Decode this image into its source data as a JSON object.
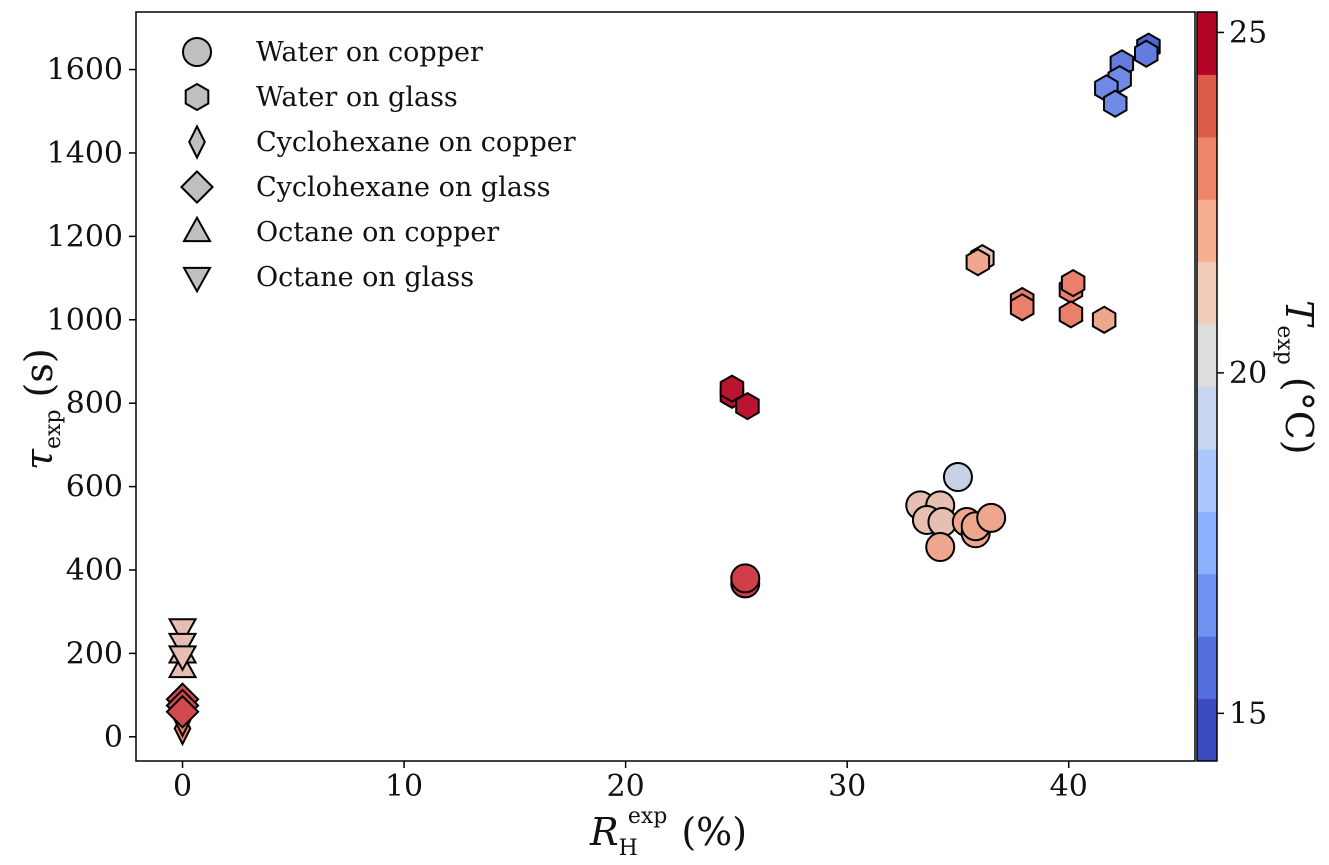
{
  "chart_data": {
    "type": "scatter",
    "title": "",
    "xlabel": {
      "main": "R",
      "sub": "H",
      "sup": "exp",
      "unit": "(%)"
    },
    "ylabel": {
      "main": "τ",
      "sub": "exp",
      "unit": "(s)"
    },
    "xlim": [
      -2.1,
      45.7
    ],
    "ylim": [
      -58,
      1738
    ],
    "xticks": [
      0,
      10,
      20,
      30,
      40
    ],
    "yticks": [
      0,
      200,
      400,
      600,
      800,
      1000,
      1200,
      1400,
      1600
    ],
    "grid": false,
    "legend_position": "top-left",
    "legend": [
      {
        "label": "Water on copper",
        "marker": "circle"
      },
      {
        "label": "Water on glass",
        "marker": "hexagon"
      },
      {
        "label": "Cyclohexane on copper",
        "marker": "thin-diamond"
      },
      {
        "label": "Cyclohexane on glass",
        "marker": "diamond"
      },
      {
        "label": "Octane on copper",
        "marker": "triangle-up"
      },
      {
        "label": "Octane on glass",
        "marker": "triangle-down"
      }
    ],
    "colorbar": {
      "label": "T",
      "label_sub": "exp",
      "unit": "(°C)",
      "range": [
        14.3,
        25.3
      ],
      "ticks": [
        15,
        20,
        25
      ],
      "colors": [
        "#3b4cc0",
        "#5470de",
        "#6f92f3",
        "#8db0fe",
        "#aac7fd",
        "#c6d6f1",
        "#dddddd",
        "#f1ccb8",
        "#f7ad8f",
        "#ee8468",
        "#dc5d4a",
        "#b40426"
      ]
    },
    "series": [
      {
        "name": "Water on copper",
        "marker": "circle",
        "points": [
          {
            "x": 25.4,
            "y": 368,
            "t": 24.2
          },
          {
            "x": 25.4,
            "y": 380,
            "t": 24.2
          },
          {
            "x": 35.0,
            "y": 623,
            "t": 19.0
          },
          {
            "x": 33.3,
            "y": 555,
            "t": 21.0
          },
          {
            "x": 34.2,
            "y": 555,
            "t": 21.0
          },
          {
            "x": 33.6,
            "y": 520,
            "t": 21.0
          },
          {
            "x": 34.3,
            "y": 515,
            "t": 21.0
          },
          {
            "x": 34.2,
            "y": 455,
            "t": 22.0
          },
          {
            "x": 35.4,
            "y": 515,
            "t": 22.0
          },
          {
            "x": 35.8,
            "y": 488,
            "t": 22.0
          },
          {
            "x": 35.8,
            "y": 505,
            "t": 22.0
          },
          {
            "x": 36.5,
            "y": 525,
            "t": 22.0
          }
        ]
      },
      {
        "name": "Water on glass",
        "marker": "hexagon",
        "points": [
          {
            "x": 24.8,
            "y": 820,
            "t": 25.0
          },
          {
            "x": 24.8,
            "y": 835,
            "t": 25.0
          },
          {
            "x": 25.5,
            "y": 793,
            "t": 25.0
          },
          {
            "x": 36.1,
            "y": 1148,
            "t": 21.0
          },
          {
            "x": 35.9,
            "y": 1138,
            "t": 22.0
          },
          {
            "x": 37.9,
            "y": 1045,
            "t": 23.0
          },
          {
            "x": 37.9,
            "y": 1030,
            "t": 23.0
          },
          {
            "x": 40.1,
            "y": 1072,
            "t": 23.0
          },
          {
            "x": 40.1,
            "y": 1013,
            "t": 23.0
          },
          {
            "x": 40.2,
            "y": 1088,
            "t": 23.0
          },
          {
            "x": 41.6,
            "y": 1000,
            "t": 22.0
          },
          {
            "x": 43.6,
            "y": 1655,
            "t": 15.0
          },
          {
            "x": 43.5,
            "y": 1638,
            "t": 15.6
          },
          {
            "x": 42.4,
            "y": 1615,
            "t": 15.6
          },
          {
            "x": 42.3,
            "y": 1577,
            "t": 16.0
          },
          {
            "x": 41.7,
            "y": 1555,
            "t": 16.0
          },
          {
            "x": 42.1,
            "y": 1518,
            "t": 16.0
          }
        ]
      },
      {
        "name": "Cyclohexane on copper",
        "marker": "thin-diamond",
        "points": [
          {
            "x": 0,
            "y": 20,
            "t": 23.0
          },
          {
            "x": 0,
            "y": 40,
            "t": 23.0
          }
        ]
      },
      {
        "name": "Cyclohexane on glass",
        "marker": "diamond",
        "points": [
          {
            "x": 0,
            "y": 90,
            "t": 24.0
          },
          {
            "x": 0,
            "y": 75,
            "t": 24.0
          },
          {
            "x": 0,
            "y": 60,
            "t": 24.0
          }
        ]
      },
      {
        "name": "Octane on copper",
        "marker": "triangle-up",
        "points": [
          {
            "x": 0,
            "y": 165,
            "t": 21.0
          },
          {
            "x": 0,
            "y": 200,
            "t": 21.0
          }
        ]
      },
      {
        "name": "Octane on glass",
        "marker": "triangle-down",
        "points": [
          {
            "x": 0,
            "y": 260,
            "t": 21.0
          },
          {
            "x": 0,
            "y": 225,
            "t": 21.0
          },
          {
            "x": 0,
            "y": 195,
            "t": 21.0
          }
        ]
      }
    ]
  }
}
